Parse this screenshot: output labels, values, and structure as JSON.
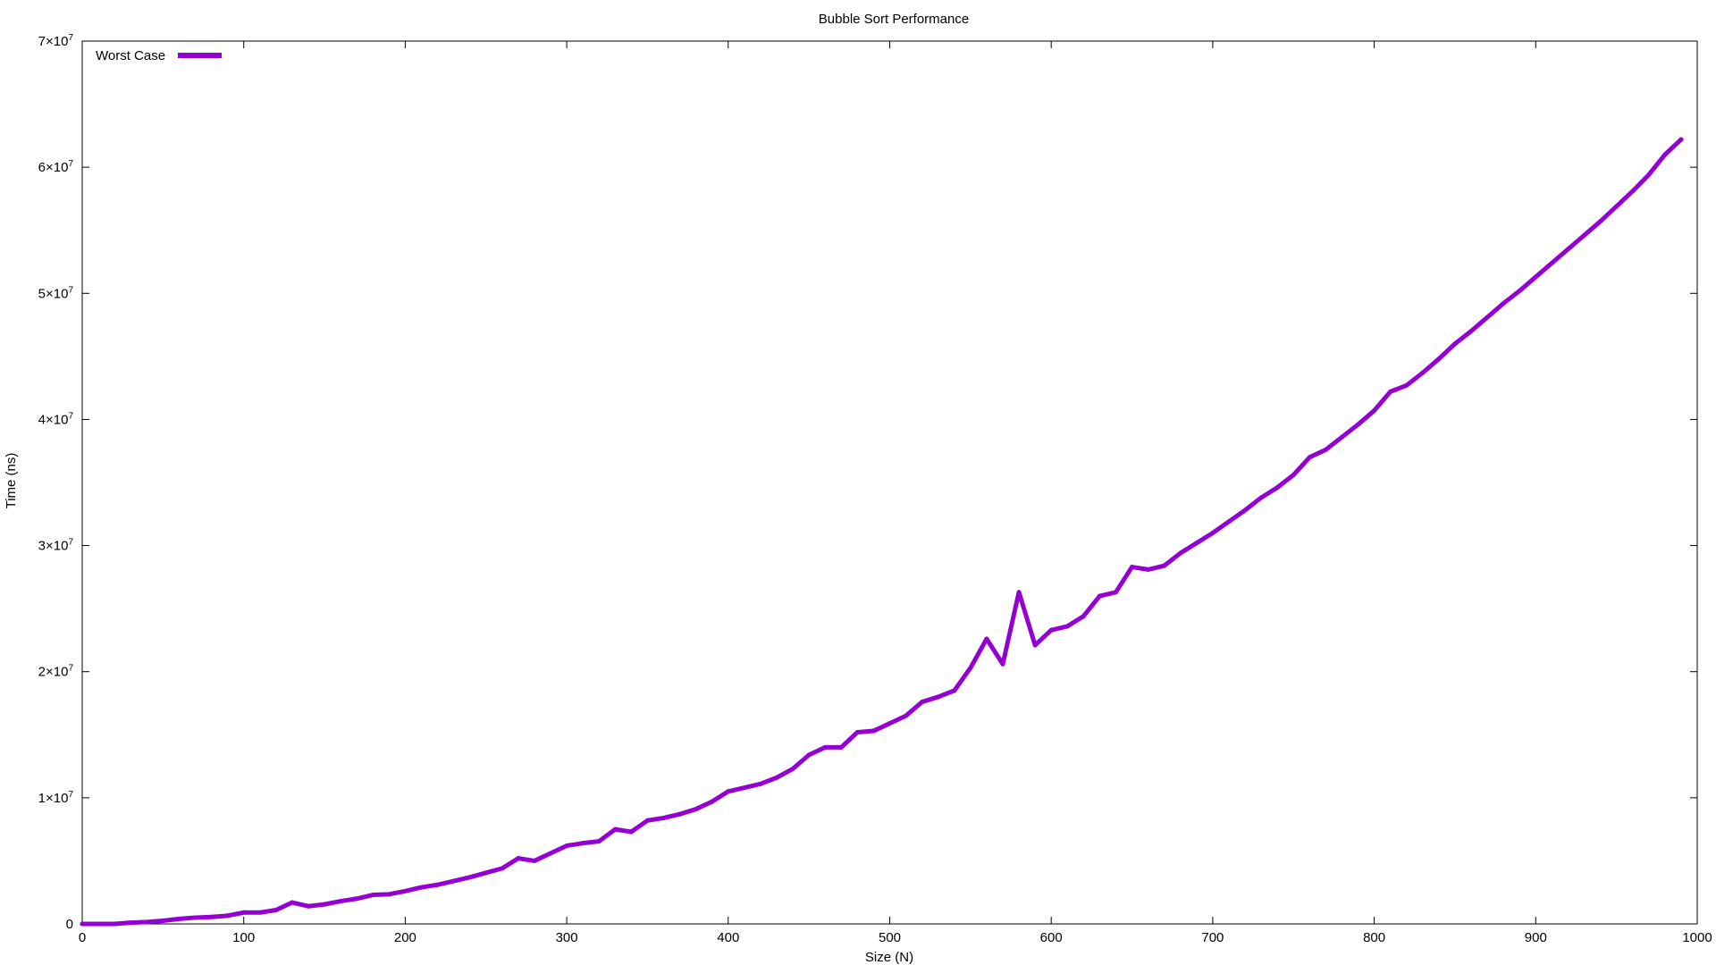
{
  "chart_data": {
    "type": "line",
    "title": "Bubble Sort Performance",
    "xlabel": "Size (N)",
    "ylabel": "Time (ns)",
    "xlim": [
      0,
      1000
    ],
    "ylim": [
      0,
      70000000
    ],
    "x_ticks": [
      {
        "value": 0,
        "label": "0"
      },
      {
        "value": 100,
        "label": "100"
      },
      {
        "value": 200,
        "label": "200"
      },
      {
        "value": 300,
        "label": "300"
      },
      {
        "value": 400,
        "label": "400"
      },
      {
        "value": 500,
        "label": "500"
      },
      {
        "value": 600,
        "label": "600"
      },
      {
        "value": 700,
        "label": "700"
      },
      {
        "value": 800,
        "label": "800"
      },
      {
        "value": 900,
        "label": "900"
      },
      {
        "value": 1000,
        "label": "1000"
      }
    ],
    "y_ticks": [
      {
        "value": 0,
        "mantissa": "0",
        "exponent": ""
      },
      {
        "value": 10000000,
        "mantissa": "1×10",
        "exponent": "7"
      },
      {
        "value": 20000000,
        "mantissa": "2×10",
        "exponent": "7"
      },
      {
        "value": 30000000,
        "mantissa": "3×10",
        "exponent": "7"
      },
      {
        "value": 40000000,
        "mantissa": "4×10",
        "exponent": "7"
      },
      {
        "value": 50000000,
        "mantissa": "5×10",
        "exponent": "7"
      },
      {
        "value": 60000000,
        "mantissa": "6×10",
        "exponent": "7"
      },
      {
        "value": 70000000,
        "mantissa": "7×10",
        "exponent": "7"
      }
    ],
    "grid": false,
    "legend": "top-left",
    "series": [
      {
        "name": "Worst Case",
        "color": "#9400d3",
        "x": [
          0,
          10,
          20,
          30,
          40,
          50,
          60,
          70,
          80,
          90,
          100,
          110,
          120,
          130,
          140,
          150,
          160,
          170,
          180,
          190,
          200,
          210,
          220,
          230,
          240,
          250,
          260,
          270,
          280,
          290,
          300,
          310,
          320,
          330,
          340,
          350,
          360,
          370,
          380,
          390,
          400,
          410,
          420,
          430,
          440,
          450,
          460,
          470,
          480,
          490,
          500,
          510,
          520,
          530,
          540,
          550,
          560,
          570,
          580,
          590,
          600,
          610,
          620,
          630,
          640,
          650,
          660,
          670,
          680,
          690,
          700,
          710,
          720,
          730,
          740,
          750,
          760,
          770,
          780,
          790,
          800,
          810,
          820,
          830,
          840,
          850,
          860,
          870,
          880,
          890,
          900,
          910,
          920,
          930,
          940,
          950,
          960,
          970,
          980,
          990
        ],
        "values": [
          0,
          0,
          0,
          100000,
          150000,
          250000,
          400000,
          500000,
          550000,
          650000,
          900000,
          900000,
          1100000,
          1700000,
          1400000,
          1550000,
          1800000,
          2000000,
          2300000,
          2350000,
          2600000,
          2900000,
          3100000,
          3400000,
          3700000,
          4050000,
          4400000,
          5200000,
          5000000,
          5600000,
          6200000,
          6400000,
          6550000,
          7500000,
          7300000,
          8200000,
          8400000,
          8700000,
          9100000,
          9700000,
          10500000,
          10800000,
          11100000,
          11600000,
          12300000,
          13400000,
          14000000,
          14000000,
          15200000,
          15300000,
          15900000,
          16500000,
          17600000,
          18000000,
          18500000,
          20300000,
          22600000,
          20600000,
          26300000,
          22100000,
          23300000,
          23600000,
          24400000,
          26000000,
          26300000,
          28300000,
          28100000,
          28400000,
          29400000,
          30200000,
          31000000,
          31900000,
          32800000,
          33800000,
          34600000,
          35600000,
          37000000,
          37600000,
          38600000,
          39600000,
          40700000,
          42200000,
          42700000,
          43700000,
          44800000,
          46000000,
          47000000,
          48100000,
          49200000,
          50200000,
          51300000,
          52400000,
          53500000,
          54600000,
          55700000,
          56900000,
          58100000,
          59400000,
          61000000,
          62200000
        ]
      }
    ]
  }
}
